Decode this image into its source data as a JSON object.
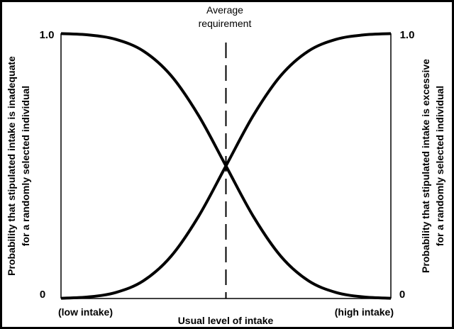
{
  "chart_data": {
    "type": "line",
    "title": "",
    "xlabel": "Usual level of intake",
    "x_low_label": "(low intake)",
    "x_high_label": "(high intake)",
    "ylabel_left": "Probability that stipulated intake is inadequate for a randomly selected individual",
    "ylabel_left_lines": [
      "Probability that stipulated intake is inadequate",
      "for a randomly selected individual"
    ],
    "ylabel_right_lines": [
      "Probability that stipulated intake is excessive",
      "for a randomly selected individual"
    ],
    "ytick_labels": [
      "0",
      "1.0"
    ],
    "ylim": [
      0,
      1
    ],
    "xlim": [
      -3,
      3
    ],
    "grid": false,
    "annotation": {
      "lines": [
        "Average",
        "requirement"
      ],
      "x": 0,
      "style": "dashed"
    },
    "x": [
      -3,
      -2.5,
      -2,
      -1.5,
      -1,
      -0.5,
      0,
      0.5,
      1,
      1.5,
      2,
      2.5,
      3
    ],
    "series": [
      {
        "values": [
          0.999,
          0.994,
          0.977,
          0.933,
          0.841,
          0.691,
          0.5,
          0.309,
          0.159,
          0.067,
          0.023,
          0.006,
          0.001
        ]
      },
      {
        "values": [
          0.001,
          0.006,
          0.023,
          0.067,
          0.159,
          0.309,
          0.5,
          0.691,
          0.841,
          0.933,
          0.977,
          0.994,
          0.999
        ]
      }
    ],
    "colors": {
      "line": "#000000",
      "background": "#ffffff"
    }
  }
}
